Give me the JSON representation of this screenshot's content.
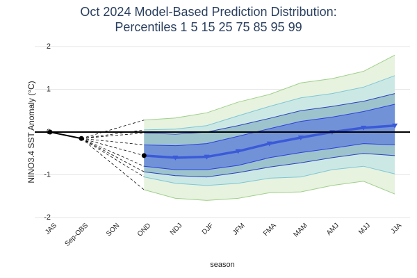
{
  "chart_data": {
    "type": "percentile-fan",
    "title": "Oct 2024 Model-Based Prediction Distribution:",
    "subtitle": "Percentiles 1 5 15 25 75 85 95 99",
    "x_label": "season",
    "y_label": "NINO3.4 SST Anomaly (°C)",
    "categories": [
      "JAS",
      "Sep-OBS",
      "SON",
      "OND",
      "NDJ",
      "DJF",
      "JFM",
      "FMA",
      "MAM",
      "AMJ",
      "MJJ",
      "JJA"
    ],
    "ylim": [
      -2,
      2
    ],
    "yticks": [
      -2,
      -1,
      0,
      1,
      2
    ],
    "grid": true,
    "series": [
      {
        "color": "#9fd08a",
        "fill": "#e7f2df",
        "values": [
          null,
          null,
          null,
          -1.35,
          -1.55,
          -1.6,
          -1.55,
          -1.42,
          -1.4,
          -1.25,
          -1.15,
          -1.45
        ]
      },
      {
        "color": "#7cc7d6",
        "fill": "#cce8e4",
        "values": [
          null,
          null,
          null,
          -1.05,
          -1.2,
          -1.25,
          -1.2,
          -1.08,
          -1.05,
          -0.88,
          -0.8,
          -0.98
        ]
      },
      {
        "color": "#2a3fbf",
        "fill": "#9dc3cc",
        "values": [
          null,
          null,
          null,
          -0.93,
          -1.02,
          -1.05,
          -0.95,
          -0.82,
          -0.72,
          -0.6,
          -0.5,
          -0.55
        ]
      },
      {
        "color": "#2a3fdd",
        "fill": "#7292d8",
        "values": [
          null,
          null,
          null,
          -0.8,
          -0.88,
          -0.88,
          -0.78,
          -0.6,
          -0.48,
          -0.38,
          -0.27,
          -0.3
        ]
      },
      {
        "color": "#2a3fdd",
        "values": [
          null,
          null,
          null,
          -0.3,
          -0.32,
          -0.27,
          -0.1,
          0.08,
          0.25,
          0.35,
          0.48,
          0.65
        ]
      },
      {
        "color": "#2a3fbf",
        "values": [
          null,
          null,
          null,
          -0.02,
          -0.05,
          0.0,
          0.15,
          0.32,
          0.5,
          0.6,
          0.72,
          0.9
        ]
      },
      {
        "color": "#7cc7d6",
        "values": [
          null,
          null,
          null,
          0.05,
          0.07,
          0.15,
          0.38,
          0.6,
          0.8,
          0.9,
          1.05,
          1.32
        ]
      },
      {
        "color": "#9fd08a",
        "values": [
          null,
          null,
          null,
          0.28,
          0.33,
          0.45,
          0.7,
          0.88,
          1.15,
          1.25,
          1.42,
          1.8
        ]
      },
      {
        "color": "#3a5ad8",
        "values": [
          null,
          null,
          null,
          -0.55,
          -0.6,
          -0.58,
          -0.45,
          -0.27,
          -0.13,
          0.0,
          0.1,
          0.15
        ]
      },
      {
        "color": "#000000",
        "values": [
          0,
          -0.15,
          null,
          null,
          null,
          null,
          null,
          null,
          null,
          null,
          null,
          null
        ]
      }
    ]
  }
}
